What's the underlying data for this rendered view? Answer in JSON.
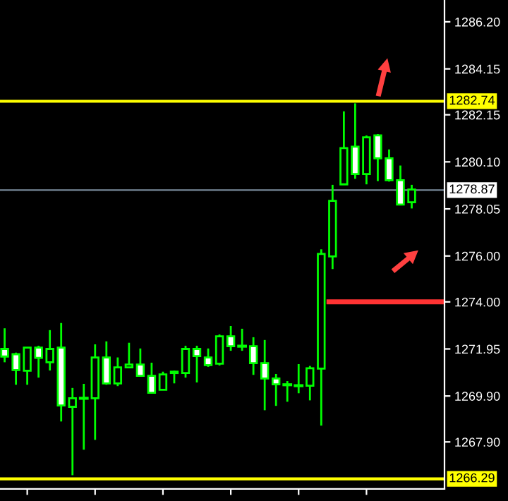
{
  "chart_data": {
    "type": "candlestick",
    "categories": [
      null,
      null,
      null,
      null,
      null,
      null,
      null,
      null,
      null,
      null,
      null,
      null,
      null,
      null,
      null,
      null,
      null,
      null,
      null,
      null,
      null,
      null,
      null,
      null,
      null,
      null,
      null,
      null,
      null,
      null,
      null,
      null,
      null,
      null,
      null,
      null,
      null
    ],
    "ohlc": [
      [
        1271.95,
        1272.85,
        1271.37,
        1271.62
      ],
      [
        1271.72,
        1271.79,
        1270.39,
        1271.03
      ],
      [
        1271.0,
        1272.01,
        1270.39,
        1272.01
      ],
      [
        1272.01,
        1272.09,
        1270.7,
        1271.56
      ],
      [
        1271.37,
        1272.77,
        1271.01,
        1271.95
      ],
      [
        1272.01,
        1273.08,
        1268.79,
        1269.49
      ],
      [
        1269.43,
        1270.25,
        1266.45,
        1269.8
      ],
      [
        1269.8,
        1270.43,
        1267.56,
        1269.8
      ],
      [
        1269.8,
        1272.15,
        1267.99,
        1271.58
      ],
      [
        1271.58,
        1272.28,
        1270.39,
        1270.45
      ],
      [
        1270.45,
        1271.58,
        1270.33,
        1271.15
      ],
      [
        1271.15,
        1272.22,
        1271.15,
        1271.27
      ],
      [
        1271.27,
        1271.97,
        1270.78,
        1270.78
      ],
      [
        1270.78,
        1271.35,
        1270.04,
        1270.04
      ],
      [
        1270.17,
        1270.96,
        1270.17,
        1270.84
      ],
      [
        1270.9,
        1271.0,
        1270.45,
        1270.96
      ],
      [
        1270.9,
        1272.09,
        1270.7,
        1271.95
      ],
      [
        1271.95,
        1272.09,
        1270.49,
        1271.64
      ],
      [
        1271.58,
        1271.97,
        1271.17,
        1271.25
      ],
      [
        1271.31,
        1272.58,
        1271.23,
        1272.5
      ],
      [
        1272.5,
        1272.95,
        1271.87,
        1272.07
      ],
      [
        1272.07,
        1272.83,
        1271.87,
        1272.07
      ],
      [
        1272.07,
        1272.46,
        1270.82,
        1271.33
      ],
      [
        1271.33,
        1272.34,
        1269.28,
        1270.66
      ],
      [
        1270.66,
        1270.86,
        1269.47,
        1270.41
      ],
      [
        1270.39,
        1270.55,
        1269.65,
        1270.39
      ],
      [
        1270.35,
        1271.29,
        1270.02,
        1270.35
      ],
      [
        1270.35,
        1271.21,
        1269.71,
        1271.11
      ],
      [
        1271.09,
        1276.29,
        1268.61,
        1276.09
      ],
      [
        1275.98,
        1279.1,
        1275.43,
        1278.4
      ],
      [
        1279.12,
        1282.3,
        1279.12,
        1280.7
      ],
      [
        1280.76,
        1282.65,
        1279.36,
        1279.57
      ],
      [
        1279.57,
        1281.25,
        1279.12,
        1281.17
      ],
      [
        1281.25,
        1281.31,
        1279.26,
        1280.25
      ],
      [
        1280.25,
        1280.64,
        1279.24,
        1279.3
      ],
      [
        1279.3,
        1279.94,
        1278.24,
        1278.24
      ],
      [
        1278.34,
        1279.1,
        1278.07,
        1278.89
      ]
    ],
    "colors": [
      "#00ff00",
      "#00ff00",
      "#00ff00",
      "#00ff00",
      "#00ff00",
      "#00ff00",
      "#00ff00",
      "#00ff00",
      "#00ff00",
      "#00ff00",
      "#00ff00",
      "#00ff00",
      "#00ff00",
      "#00ff00",
      "#00ff00",
      "#00ff00",
      "#00ff00",
      "#00ff00",
      "#00ff00",
      "#00ff00",
      "#00ff00",
      "#00ff00",
      "#00ff00",
      "#00ff00",
      "#00ff00",
      "#00ff00",
      "#00ff00",
      "#00ff00",
      "#00ff00",
      "#00ff00",
      "#00ff00",
      "#00ff00",
      "#00ff00",
      "#00ff00",
      "#00ff00",
      "#00ff00",
      "#00ff00"
    ],
    "ylim": [
      1265.85,
      1287.15
    ],
    "yticks": [
      {
        "value": 1267.9,
        "label": "1267.90"
      },
      {
        "value": 1269.9,
        "label": "1269.90"
      },
      {
        "value": 1271.95,
        "label": "1271.95"
      },
      {
        "value": 1274.0,
        "label": "1274.00"
      },
      {
        "value": 1276.0,
        "label": "1276.00"
      },
      {
        "value": 1278.05,
        "label": "1278.05"
      },
      {
        "value": 1280.1,
        "label": "1280.10"
      },
      {
        "value": 1282.15,
        "label": "1282.15"
      },
      {
        "value": 1284.15,
        "label": "1284.15"
      },
      {
        "value": 1286.2,
        "label": "1286.20"
      }
    ],
    "tick_labels": "y",
    "grid": false,
    "ref_lines": [
      {
        "axis": "y",
        "value": 1282.74,
        "label": "1282.74",
        "color": "#ffff00"
      },
      {
        "axis": "y",
        "value": 1278.87,
        "label": "1278.87",
        "color": "#778899"
      },
      {
        "axis": "y",
        "value": 1266.29,
        "label": "1266.29",
        "color": "#ffff00"
      },
      {
        "axis": "y",
        "value": 1274.0,
        "color": "#ff3333"
      }
    ]
  }
}
